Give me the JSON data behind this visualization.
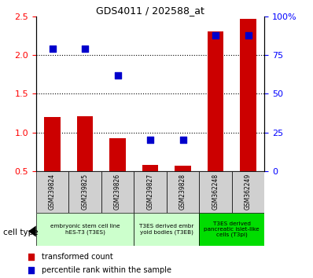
{
  "title": "GDS4011 / 202588_at",
  "samples": [
    "GSM239824",
    "GSM239825",
    "GSM239826",
    "GSM239827",
    "GSM239828",
    "GSM362248",
    "GSM362249"
  ],
  "transformed_count": [
    1.2,
    1.21,
    0.92,
    0.58,
    0.57,
    2.31,
    2.47
  ],
  "percentile_rank": [
    79,
    79,
    62,
    20,
    20,
    88,
    88
  ],
  "ylim_left": [
    0.5,
    2.5
  ],
  "ylim_right": [
    0,
    100
  ],
  "yticks_left": [
    0.5,
    1.0,
    1.5,
    2.0,
    2.5
  ],
  "yticks_right": [
    0,
    25,
    50,
    75,
    100
  ],
  "ytick_labels_right": [
    "0",
    "25",
    "50",
    "75",
    "100%"
  ],
  "bar_color": "#cc0000",
  "dot_color": "#0000cc",
  "cell_type_groups": [
    {
      "label": "embryonic stem cell line\nhES-T3 (T3ES)",
      "start": 0,
      "end": 2,
      "color": "#ccffcc"
    },
    {
      "label": "T3ES derived embr\nyoid bodies (T3EB)",
      "start": 3,
      "end": 4,
      "color": "#ccffcc"
    },
    {
      "label": "T3ES derived\npancreatic islet-like\ncells (T3pi)",
      "start": 5,
      "end": 6,
      "color": "#00dd00"
    }
  ],
  "cell_type_label": "cell type",
  "legend_transformed": "transformed count",
  "legend_percentile": "percentile rank within the sample",
  "bar_width": 0.5,
  "dot_size": 28,
  "bg_color": "#ffffff"
}
